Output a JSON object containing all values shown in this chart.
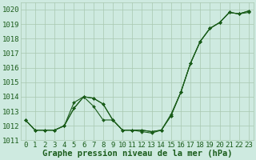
{
  "title": "Graphe pression niveau de la mer (hPa)",
  "bg_color": "#ceeae0",
  "line_color": "#1a5c1a",
  "grid_color": "#a8c8b0",
  "xlim": [
    -0.5,
    23.5
  ],
  "ylim": [
    1011.0,
    1020.5
  ],
  "yticks": [
    1011,
    1012,
    1013,
    1014,
    1015,
    1016,
    1017,
    1018,
    1019,
    1020
  ],
  "xticks": [
    0,
    1,
    2,
    3,
    4,
    5,
    6,
    7,
    8,
    9,
    10,
    11,
    12,
    13,
    14,
    15,
    16,
    17,
    18,
    19,
    20,
    21,
    22,
    23
  ],
  "series": [
    [
      1012.4,
      1011.7,
      1011.7,
      1011.7,
      1012.0,
      1013.2,
      1014.0,
      1013.9,
      1013.5,
      1012.4,
      1011.7,
      1011.7,
      1011.7,
      1011.6,
      1011.7,
      1012.7,
      1014.3,
      1016.3,
      1017.8,
      1018.7,
      1019.1,
      1019.8,
      1019.7,
      1019.8
    ],
    [
      1012.4,
      1011.7,
      1011.7,
      1011.7,
      1012.0,
      1013.2,
      1014.0,
      1013.9,
      1013.5,
      1012.4,
      1011.7,
      1011.7,
      1011.6,
      1011.5,
      1011.7,
      1012.7,
      1014.3,
      1016.3,
      1017.8,
      1018.7,
      1019.1,
      1019.8,
      1019.7,
      1019.9
    ],
    [
      1012.4,
      1011.7,
      1011.7,
      1011.7,
      1012.0,
      1013.6,
      1014.0,
      1013.35,
      1012.4,
      1012.4,
      1011.7,
      1011.7,
      1011.7,
      1011.6,
      1011.7,
      1012.8,
      1014.3,
      1016.3,
      1017.8,
      1018.7,
      1019.1,
      1019.8,
      1019.7,
      1019.9
    ]
  ],
  "xlabel_fontsize": 7.5,
  "tick_fontsize": 6.5,
  "figsize": [
    3.2,
    2.0
  ],
  "dpi": 100
}
